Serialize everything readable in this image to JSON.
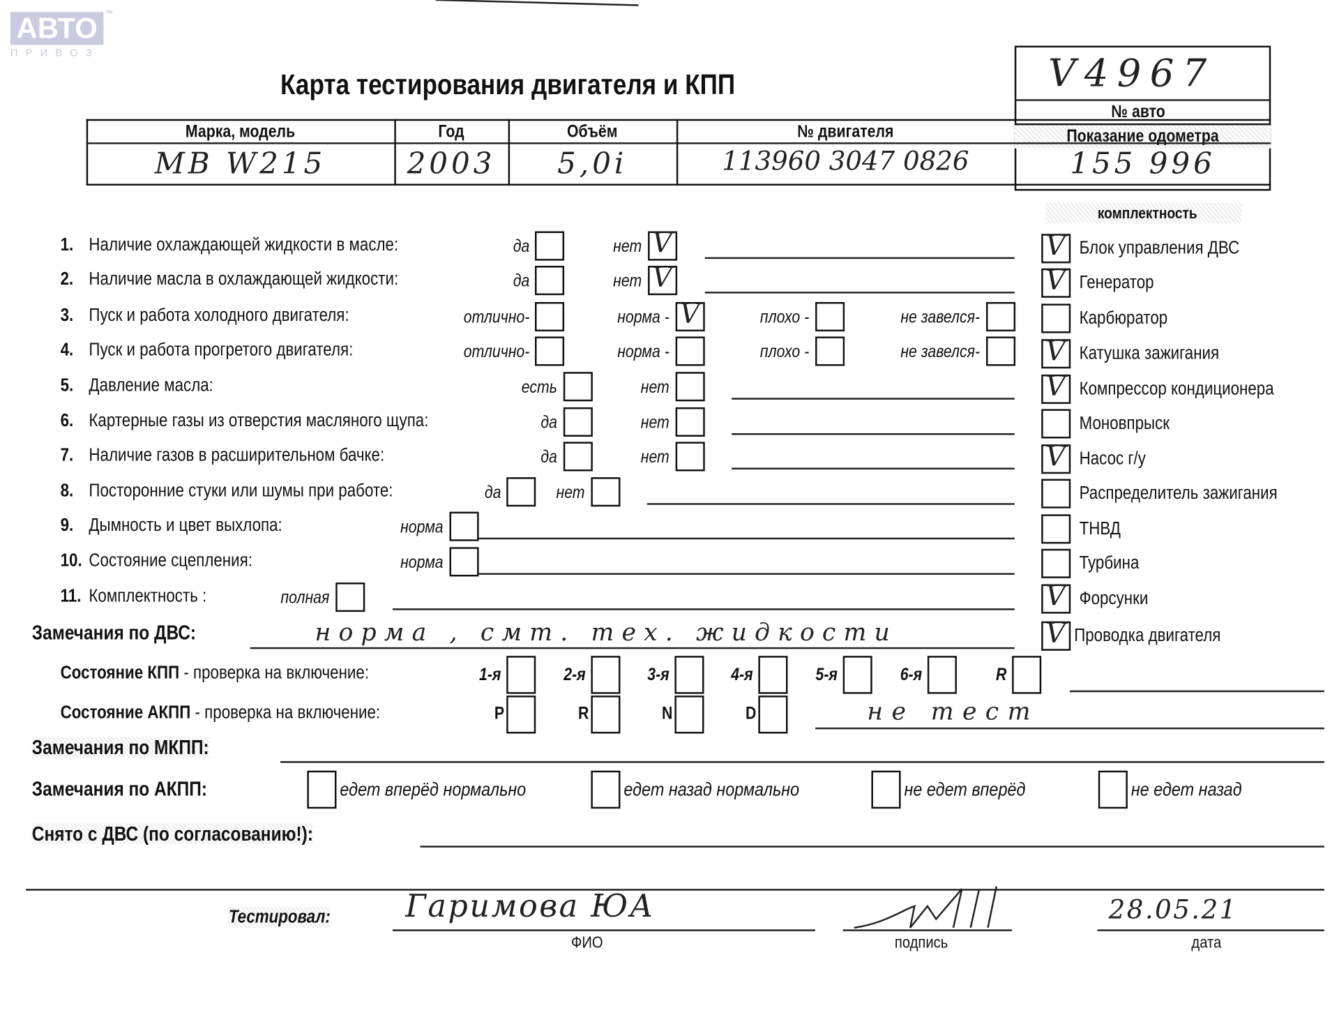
{
  "logo": {
    "brand": "АВТО",
    "sub": "ПРИВОЗ",
    "tm": "™"
  },
  "title": "Карта тестирования двигателя  и КПП",
  "car_number": {
    "value": "V4967",
    "label": "№ авто"
  },
  "header": {
    "columns": [
      "Марка, модель",
      "Год",
      "Объём",
      "№ двигателя",
      "Показание одометра"
    ],
    "values": [
      "MB  W215",
      "2003",
      "5,0i",
      "113960 3047 0826",
      "155 996"
    ]
  },
  "checklist": [
    {
      "num": "1.",
      "label": "Наличие охлаждающей жидкости в масле:",
      "options": [
        {
          "label": "да",
          "checked": false
        },
        {
          "label": "нет",
          "checked": true
        }
      ]
    },
    {
      "num": "2.",
      "label": "Наличие масла в охлаждающей жидкости:",
      "options": [
        {
          "label": "да",
          "checked": false
        },
        {
          "label": "нет",
          "checked": true
        }
      ]
    },
    {
      "num": "3.",
      "label": "Пуск и работа холодного двигателя:",
      "options": [
        {
          "label": "отлично-",
          "checked": false
        },
        {
          "label": "норма -",
          "checked": true
        },
        {
          "label": "плохо -",
          "checked": false
        },
        {
          "label": "не завелся-",
          "checked": false
        }
      ]
    },
    {
      "num": "4.",
      "label": "Пуск и работа прогретого двигателя:",
      "options": [
        {
          "label": "отлично-",
          "checked": false
        },
        {
          "label": "норма -",
          "checked": false
        },
        {
          "label": "плохо -",
          "checked": false
        },
        {
          "label": "не завелся-",
          "checked": false
        }
      ]
    },
    {
      "num": "5.",
      "label": "Давление масла:",
      "options": [
        {
          "label": "есть",
          "checked": false
        },
        {
          "label": "нет",
          "checked": false
        }
      ]
    },
    {
      "num": "6.",
      "label": "Картерные газы из отверстия масляного щупа:",
      "options": [
        {
          "label": "да",
          "checked": false
        },
        {
          "label": "нет",
          "checked": false
        }
      ]
    },
    {
      "num": "7.",
      "label": "Наличие газов в расширительном бачке:",
      "options": [
        {
          "label": "да",
          "checked": false
        },
        {
          "label": "нет",
          "checked": false
        }
      ]
    },
    {
      "num": "8.",
      "label": "Посторонние стуки или шумы при работе:",
      "options": [
        {
          "label": "да",
          "checked": false
        },
        {
          "label": "нет",
          "checked": false
        }
      ]
    },
    {
      "num": "9.",
      "label": "Дымность и цвет выхлопа:",
      "options": [
        {
          "label": "норма",
          "checked": false
        }
      ]
    },
    {
      "num": "10.",
      "label": "Состояние сцепления:",
      "options": [
        {
          "label": "норма",
          "checked": false
        }
      ]
    },
    {
      "num": "11.",
      "label": "Комплектность :",
      "options": [
        {
          "label": "полная",
          "checked": false
        }
      ]
    }
  ],
  "completeness": {
    "title": "комплектность",
    "items": [
      {
        "label": "Блок управления ДВС",
        "checked": true
      },
      {
        "label": "Генератор",
        "checked": true
      },
      {
        "label": "Карбюратор",
        "checked": false
      },
      {
        "label": "Катушка зажигания",
        "checked": true
      },
      {
        "label": "Компрессор кондиционера",
        "checked": true
      },
      {
        "label": "Моновпрыск",
        "checked": false
      },
      {
        "label": "Насос г/у",
        "checked": true
      },
      {
        "label": "Распределитель зажигания",
        "checked": false
      },
      {
        "label": "ТНВД",
        "checked": false
      },
      {
        "label": "Турбина",
        "checked": false
      },
      {
        "label": "Форсунки",
        "checked": true
      },
      {
        "label": "Проводка двигателя",
        "checked": true
      }
    ]
  },
  "engine_remarks": {
    "label": "Замечания по ДВС:",
    "value": "норма , смт. тех. жидкости"
  },
  "manual_gearbox": {
    "label_bold": "Состояние КПП",
    "label_rest": " - проверка на включение:",
    "gears": [
      {
        "label": "1-я",
        "checked": false
      },
      {
        "label": "2-я",
        "checked": false
      },
      {
        "label": "3-я",
        "checked": false
      },
      {
        "label": "4-я",
        "checked": false
      },
      {
        "label": "5-я",
        "checked": false
      },
      {
        "label": "6-я",
        "checked": false
      },
      {
        "label": "R",
        "checked": false
      }
    ]
  },
  "auto_gearbox": {
    "label_bold": "Состояние АКПП",
    "label_rest": " - проверка на включение:",
    "gears": [
      {
        "label": "P",
        "checked": false
      },
      {
        "label": "R",
        "checked": false
      },
      {
        "label": "N",
        "checked": false
      },
      {
        "label": "D",
        "checked": false
      }
    ],
    "note": "не тест"
  },
  "manual_remarks": {
    "label": "Замечания по МКПП:"
  },
  "auto_remarks": {
    "label": "Замечания по АКПП:",
    "options": [
      {
        "label": "едет вперёд нормально",
        "checked": false
      },
      {
        "label": "едет назад нормально",
        "checked": false
      },
      {
        "label": "не едет вперёд",
        "checked": false
      },
      {
        "label": "не едет назад",
        "checked": false
      }
    ]
  },
  "removed": {
    "label": "Снято с ДВС (по согласованию!):"
  },
  "tested": {
    "label": "Тестировал:",
    "name": "Гаримова ЮА",
    "name_caption": "ФИО",
    "signature_caption": "подпись",
    "date": "28.05.21",
    "date_caption": "дата"
  },
  "check_mark": "V"
}
